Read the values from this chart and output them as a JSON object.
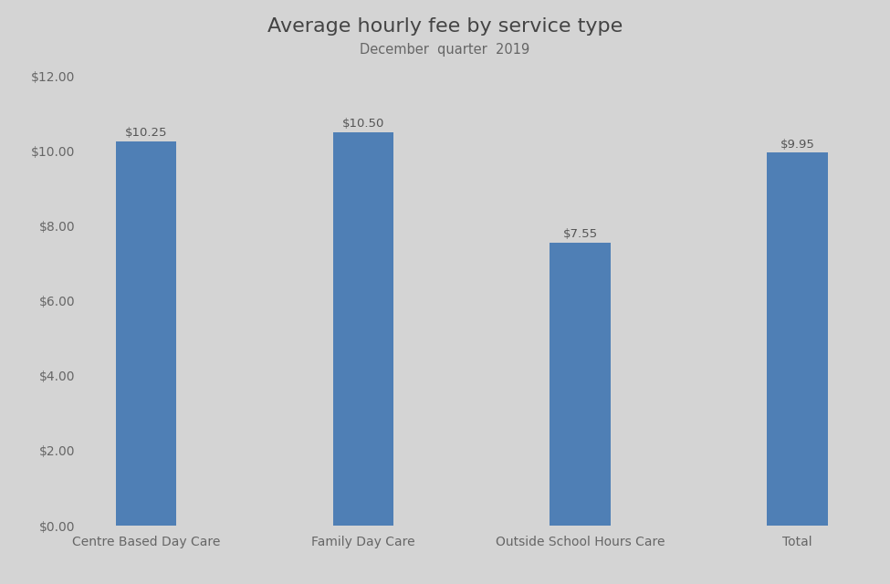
{
  "categories": [
    "Centre Based Day Care",
    "Family Day Care",
    "Outside School Hours Care",
    "Total"
  ],
  "values": [
    10.25,
    10.5,
    7.55,
    9.95
  ],
  "bar_color": "#4f7fb5",
  "title": "Average hourly fee by service type",
  "subtitle": "December  quarter  2019",
  "ylim": [
    0,
    12
  ],
  "yticks": [
    0,
    2,
    4,
    6,
    8,
    10,
    12
  ],
  "ytick_labels": [
    "$0.00",
    "$2.00",
    "$4.00",
    "$6.00",
    "$8.00",
    "$10.00",
    "$12.00"
  ],
  "background_color": "#d4d4d4",
  "title_fontsize": 16,
  "subtitle_fontsize": 10.5,
  "x_label_fontsize": 10,
  "tick_label_fontsize": 10,
  "bar_label_fontsize": 9.5,
  "bar_width": 0.28,
  "bar_label_color": "#555555",
  "tick_color": "#666666"
}
